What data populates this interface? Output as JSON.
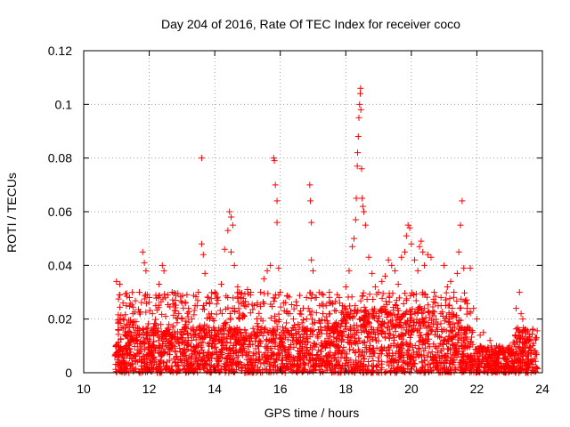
{
  "chart_data": {
    "type": "scatter",
    "title": "Day 204 of 2016, Rate Of TEC Index for receiver coco",
    "xlabel": "GPS time / hours",
    "ylabel": "ROTI / TECUs",
    "xlim": [
      10,
      24
    ],
    "ylim": [
      0,
      0.12
    ],
    "xticks": [
      "10",
      "12",
      "14",
      "16",
      "18",
      "20",
      "22",
      "24"
    ],
    "yticks": [
      "0",
      "0.02",
      "0.04",
      "0.06",
      "0.08",
      "0.1",
      "0.12"
    ],
    "grid": true,
    "marker": "plus",
    "color": "#ff0000",
    "background_band": {
      "x_range": [
        10.95,
        23.85
      ],
      "y_range": [
        0.0,
        0.017
      ],
      "density_hint": "dense"
    },
    "points": [
      [
        11.0,
        0.034
      ],
      [
        11.1,
        0.033
      ],
      [
        11.2,
        0.026
      ],
      [
        11.3,
        0.025
      ],
      [
        11.4,
        0.028
      ],
      [
        11.5,
        0.022
      ],
      [
        11.6,
        0.019
      ],
      [
        11.7,
        0.03
      ],
      [
        11.8,
        0.045
      ],
      [
        11.85,
        0.041
      ],
      [
        11.9,
        0.038
      ],
      [
        12.0,
        0.028
      ],
      [
        12.1,
        0.022
      ],
      [
        12.2,
        0.025
      ],
      [
        12.3,
        0.033
      ],
      [
        12.4,
        0.04
      ],
      [
        12.45,
        0.038
      ],
      [
        12.5,
        0.021
      ],
      [
        12.6,
        0.018
      ],
      [
        12.7,
        0.03
      ],
      [
        12.8,
        0.027
      ],
      [
        12.9,
        0.022
      ],
      [
        13.0,
        0.02
      ],
      [
        13.1,
        0.018
      ],
      [
        13.2,
        0.024
      ],
      [
        13.3,
        0.02
      ],
      [
        13.4,
        0.025
      ],
      [
        13.5,
        0.03
      ],
      [
        13.6,
        0.08
      ],
      [
        13.6,
        0.048
      ],
      [
        13.65,
        0.044
      ],
      [
        13.7,
        0.037
      ],
      [
        13.8,
        0.028
      ],
      [
        13.9,
        0.022
      ],
      [
        14.0,
        0.03
      ],
      [
        14.1,
        0.027
      ],
      [
        14.2,
        0.033
      ],
      [
        14.3,
        0.046
      ],
      [
        14.4,
        0.053
      ],
      [
        14.45,
        0.06
      ],
      [
        14.5,
        0.058
      ],
      [
        14.55,
        0.055
      ],
      [
        14.5,
        0.045
      ],
      [
        14.6,
        0.04
      ],
      [
        14.7,
        0.032
      ],
      [
        14.8,
        0.028
      ],
      [
        14.9,
        0.025
      ],
      [
        15.0,
        0.031
      ],
      [
        15.1,
        0.03
      ],
      [
        15.2,
        0.025
      ],
      [
        15.3,
        0.026
      ],
      [
        15.4,
        0.03
      ],
      [
        15.5,
        0.035
      ],
      [
        15.6,
        0.038
      ],
      [
        15.7,
        0.04
      ],
      [
        15.8,
        0.08
      ],
      [
        15.82,
        0.079
      ],
      [
        15.85,
        0.07
      ],
      [
        15.9,
        0.064
      ],
      [
        15.9,
        0.056
      ],
      [
        15.95,
        0.039
      ],
      [
        16.0,
        0.03
      ],
      [
        16.1,
        0.026
      ],
      [
        16.2,
        0.023
      ],
      [
        16.3,
        0.022
      ],
      [
        16.4,
        0.02
      ],
      [
        16.5,
        0.025
      ],
      [
        16.6,
        0.022
      ],
      [
        16.7,
        0.024
      ],
      [
        16.8,
        0.028
      ],
      [
        16.9,
        0.07
      ],
      [
        16.92,
        0.064
      ],
      [
        16.95,
        0.056
      ],
      [
        16.95,
        0.042
      ],
      [
        17.0,
        0.038
      ],
      [
        17.1,
        0.028
      ],
      [
        17.2,
        0.025
      ],
      [
        17.3,
        0.022
      ],
      [
        17.4,
        0.025
      ],
      [
        17.5,
        0.03
      ],
      [
        17.6,
        0.026
      ],
      [
        17.7,
        0.023
      ],
      [
        17.8,
        0.028
      ],
      [
        17.9,
        0.025
      ],
      [
        18.0,
        0.032
      ],
      [
        18.1,
        0.038
      ],
      [
        18.2,
        0.047
      ],
      [
        18.25,
        0.05
      ],
      [
        18.3,
        0.057
      ],
      [
        18.32,
        0.065
      ],
      [
        18.35,
        0.077
      ],
      [
        18.36,
        0.082
      ],
      [
        18.38,
        0.088
      ],
      [
        18.4,
        0.095
      ],
      [
        18.42,
        0.1
      ],
      [
        18.44,
        0.104
      ],
      [
        18.45,
        0.106
      ],
      [
        18.46,
        0.098
      ],
      [
        18.48,
        0.076
      ],
      [
        18.5,
        0.065
      ],
      [
        18.52,
        0.062
      ],
      [
        18.55,
        0.06
      ],
      [
        18.6,
        0.055
      ],
      [
        18.7,
        0.043
      ],
      [
        18.8,
        0.037
      ],
      [
        18.9,
        0.032
      ],
      [
        19.0,
        0.03
      ],
      [
        19.1,
        0.034
      ],
      [
        19.2,
        0.036
      ],
      [
        19.3,
        0.042
      ],
      [
        19.4,
        0.04
      ],
      [
        19.5,
        0.038
      ],
      [
        19.6,
        0.033
      ],
      [
        19.7,
        0.043
      ],
      [
        19.8,
        0.045
      ],
      [
        19.85,
        0.051
      ],
      [
        19.9,
        0.055
      ],
      [
        19.95,
        0.054
      ],
      [
        20.0,
        0.048
      ],
      [
        20.1,
        0.042
      ],
      [
        20.2,
        0.038
      ],
      [
        20.25,
        0.047
      ],
      [
        20.3,
        0.049
      ],
      [
        20.35,
        0.045
      ],
      [
        20.4,
        0.04
      ],
      [
        20.5,
        0.044
      ],
      [
        20.6,
        0.043
      ],
      [
        20.7,
        0.03
      ],
      [
        20.8,
        0.018
      ],
      [
        20.9,
        0.022
      ],
      [
        21.0,
        0.04
      ],
      [
        21.1,
        0.032
      ],
      [
        21.2,
        0.034
      ],
      [
        21.3,
        0.03
      ],
      [
        21.4,
        0.037
      ],
      [
        21.45,
        0.045
      ],
      [
        21.5,
        0.055
      ],
      [
        21.55,
        0.064
      ],
      [
        21.6,
        0.039
      ],
      [
        21.7,
        0.024
      ],
      [
        21.8,
        0.039
      ],
      [
        21.9,
        0.024
      ],
      [
        22.0,
        0.02
      ],
      [
        22.1,
        0.014
      ],
      [
        22.2,
        0.015
      ],
      [
        22.4,
        0.012
      ],
      [
        22.6,
        0.01
      ],
      [
        22.8,
        0.009
      ],
      [
        23.0,
        0.01
      ],
      [
        23.2,
        0.024
      ],
      [
        23.3,
        0.03
      ],
      [
        23.35,
        0.022
      ],
      [
        23.4,
        0.02
      ],
      [
        23.5,
        0.015
      ],
      [
        23.6,
        0.012
      ],
      [
        23.7,
        0.016
      ],
      [
        23.8,
        0.013
      ]
    ]
  }
}
